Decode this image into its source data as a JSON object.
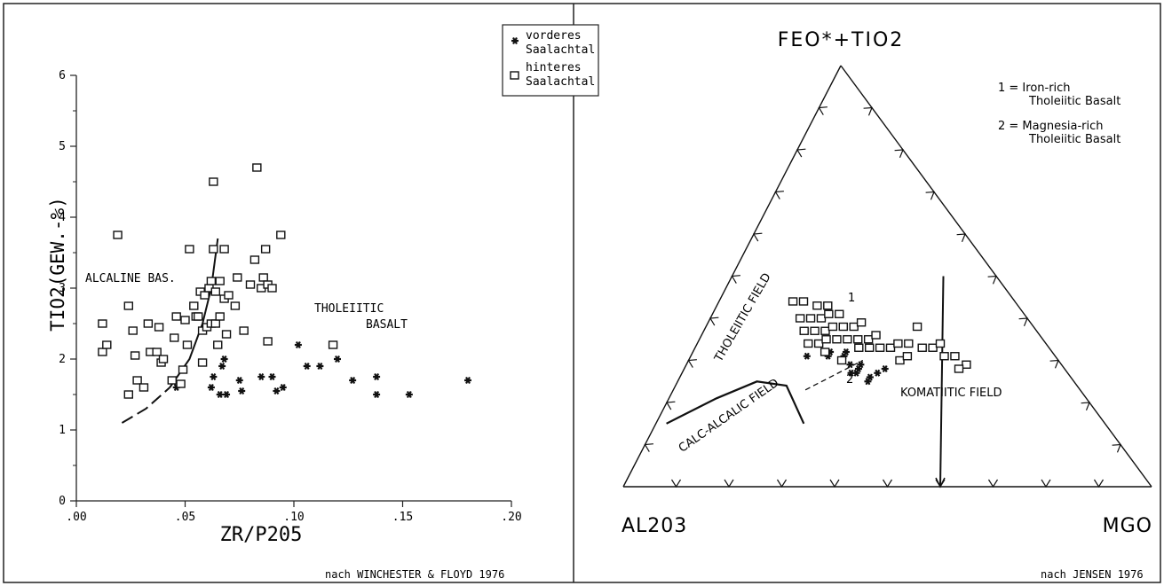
{
  "chart_data": [
    {
      "type": "scatter",
      "xlabel": "ZR/P205",
      "ylabel": "TIO2(GEW.-%)",
      "xlim": [
        0.0,
        0.2
      ],
      "ylim": [
        0,
        6
      ],
      "xticks": [
        ".00",
        ".05",
        ".10",
        ".15",
        ".20"
      ],
      "xtick_values": [
        0.0,
        0.05,
        0.1,
        0.15,
        0.2
      ],
      "yticks": [
        "0",
        "1",
        "2",
        "3",
        "4",
        "5",
        "6"
      ],
      "ytick_values": [
        0,
        1,
        2,
        3,
        4,
        5,
        6
      ],
      "grid": false,
      "legend_position": "top-right",
      "legend": [
        {
          "marker": "star",
          "label": "vorderes\nSaalachtal",
          "line1": "vorderes",
          "line2": "Saalachtal"
        },
        {
          "marker": "square",
          "label": "hinteres\nSaalachtal",
          "line1": "hinteres",
          "line2": "Saalachtal"
        }
      ],
      "field_labels": {
        "alkaline": "ALCALINE BAS.",
        "tholeiitic_line1": "THOLEIITIC",
        "tholeiitic_line2": "BASALT"
      },
      "boundary_curve": [
        [
          0.021,
          1.1
        ],
        [
          0.032,
          1.3
        ],
        [
          0.043,
          1.6
        ],
        [
          0.052,
          2.0
        ],
        [
          0.058,
          2.5
        ],
        [
          0.062,
          3.0
        ],
        [
          0.065,
          3.7
        ]
      ],
      "boundary_solid_from_index": 2,
      "source": "nach WINCHESTER & FLOYD 1976",
      "series": [
        {
          "name": "vorderes Saalachtal",
          "marker": "star",
          "points": [
            [
              0.046,
              1.6
            ],
            [
              0.048,
              1.65
            ],
            [
              0.062,
              1.6
            ],
            [
              0.063,
              1.75
            ],
            [
              0.066,
              1.5
            ],
            [
              0.067,
              1.9
            ],
            [
              0.068,
              2.0
            ],
            [
              0.069,
              1.5
            ],
            [
              0.075,
              1.7
            ],
            [
              0.076,
              1.55
            ],
            [
              0.085,
              1.75
            ],
            [
              0.09,
              1.75
            ],
            [
              0.092,
              1.55
            ],
            [
              0.095,
              1.6
            ],
            [
              0.102,
              2.2
            ],
            [
              0.106,
              1.9
            ],
            [
              0.112,
              1.9
            ],
            [
              0.12,
              2.0
            ],
            [
              0.127,
              1.7
            ],
            [
              0.138,
              1.75
            ],
            [
              0.138,
              1.5
            ],
            [
              0.153,
              1.5
            ],
            [
              0.18,
              1.7
            ]
          ]
        },
        {
          "name": "hinteres Saalachtal",
          "marker": "square",
          "points": [
            [
              0.012,
              2.1
            ],
            [
              0.012,
              2.5
            ],
            [
              0.014,
              2.2
            ],
            [
              0.019,
              3.75
            ],
            [
              0.024,
              1.5
            ],
            [
              0.024,
              2.75
            ],
            [
              0.026,
              2.4
            ],
            [
              0.027,
              2.05
            ],
            [
              0.028,
              1.7
            ],
            [
              0.031,
              1.6
            ],
            [
              0.033,
              2.5
            ],
            [
              0.034,
              2.1
            ],
            [
              0.037,
              2.1
            ],
            [
              0.038,
              2.45
            ],
            [
              0.039,
              1.95
            ],
            [
              0.04,
              2.0
            ],
            [
              0.044,
              1.7
            ],
            [
              0.045,
              2.3
            ],
            [
              0.046,
              2.6
            ],
            [
              0.048,
              1.65
            ],
            [
              0.049,
              1.85
            ],
            [
              0.05,
              2.55
            ],
            [
              0.051,
              2.2
            ],
            [
              0.052,
              3.55
            ],
            [
              0.054,
              2.75
            ],
            [
              0.055,
              2.6
            ],
            [
              0.056,
              2.6
            ],
            [
              0.057,
              2.95
            ],
            [
              0.058,
              1.95
            ],
            [
              0.058,
              2.4
            ],
            [
              0.059,
              2.9
            ],
            [
              0.06,
              2.45
            ],
            [
              0.061,
              3.0
            ],
            [
              0.062,
              3.1
            ],
            [
              0.062,
              2.5
            ],
            [
              0.063,
              3.55
            ],
            [
              0.063,
              4.5
            ],
            [
              0.064,
              2.95
            ],
            [
              0.064,
              2.5
            ],
            [
              0.065,
              2.2
            ],
            [
              0.066,
              2.6
            ],
            [
              0.066,
              3.1
            ],
            [
              0.068,
              2.85
            ],
            [
              0.068,
              3.55
            ],
            [
              0.069,
              2.35
            ],
            [
              0.07,
              2.9
            ],
            [
              0.073,
              2.75
            ],
            [
              0.074,
              3.15
            ],
            [
              0.077,
              2.4
            ],
            [
              0.08,
              3.05
            ],
            [
              0.082,
              3.4
            ],
            [
              0.083,
              4.7
            ],
            [
              0.085,
              3.0
            ],
            [
              0.086,
              3.15
            ],
            [
              0.087,
              3.55
            ],
            [
              0.088,
              3.05
            ],
            [
              0.088,
              2.25
            ],
            [
              0.09,
              3.0
            ],
            [
              0.094,
              3.75
            ],
            [
              0.118,
              2.2
            ]
          ]
        }
      ]
    },
    {
      "type": "ternary-scatter",
      "apex_top": "FEO*+TIO2",
      "apex_left": "AL203",
      "apex_right": "MGO",
      "legend_position": "top-right",
      "legend": [
        {
          "line1": "1 = Iron-rich",
          "line2": "Tholeiitic Basalt"
        },
        {
          "line1": "2 = Magnesia-rich",
          "line2": "Tholeiitic Basalt"
        }
      ],
      "field_labels": {
        "tholeiitic": "THOLEIITIC FIELD",
        "calc_alkalic": "CALC-ALCALIC FIELD",
        "komatiitic": "KOMATIITIC FIELD",
        "label_1": "1",
        "label_2": "2"
      },
      "boundary_komatiitic_top": {
        "Al": 0.1,
        "FeTi": 0.5,
        "Mg": 0.4
      },
      "boundary_komatiitic_bottom": {
        "Al": 0.4,
        "FeTi": 0.0,
        "Mg": 0.6
      },
      "boundary_ca_curve": [
        {
          "Al": 0.83,
          "FeTi": 0.15,
          "Mg": 0.02
        },
        {
          "Al": 0.7,
          "FeTi": 0.21,
          "Mg": 0.09
        },
        {
          "Al": 0.6,
          "FeTi": 0.25,
          "Mg": 0.15
        },
        {
          "Al": 0.55,
          "FeTi": 0.24,
          "Mg": 0.21
        },
        {
          "Al": 0.57,
          "FeTi": 0.15,
          "Mg": 0.28
        }
      ],
      "boundary_ca_dashed": [
        {
          "Al": 0.52,
          "FeTi": 0.23,
          "Mg": 0.25
        },
        {
          "Al": 0.37,
          "FeTi": 0.3,
          "Mg": 0.33
        }
      ],
      "source": "nach JENSEN 1976",
      "series": [
        {
          "name": "vorderes Saalachtal",
          "marker": "star",
          "points": [
            {
              "Al": 0.45,
              "FeTi": 0.34,
              "Mg": 0.21
            },
            {
              "Al": 0.47,
              "FeTi": 0.31,
              "Mg": 0.22
            },
            {
              "Al": 0.43,
              "FeTi": 0.31,
              "Mg": 0.26
            },
            {
              "Al": 0.42,
              "FeTi": 0.32,
              "Mg": 0.26
            },
            {
              "Al": 0.4,
              "FeTi": 0.31,
              "Mg": 0.29
            },
            {
              "Al": 0.39,
              "FeTi": 0.32,
              "Mg": 0.29
            },
            {
              "Al": 0.41,
              "FeTi": 0.3,
              "Mg": 0.29
            },
            {
              "Al": 0.4,
              "FeTi": 0.29,
              "Mg": 0.31
            },
            {
              "Al": 0.39,
              "FeTi": 0.28,
              "Mg": 0.33
            },
            {
              "Al": 0.38,
              "FeTi": 0.29,
              "Mg": 0.33
            },
            {
              "Al": 0.41,
              "FeTi": 0.27,
              "Mg": 0.32
            },
            {
              "Al": 0.4,
              "FeTi": 0.27,
              "Mg": 0.33
            },
            {
              "Al": 0.38,
              "FeTi": 0.26,
              "Mg": 0.36
            },
            {
              "Al": 0.36,
              "FeTi": 0.27,
              "Mg": 0.37
            },
            {
              "Al": 0.34,
              "FeTi": 0.28,
              "Mg": 0.38
            },
            {
              "Al": 0.39,
              "FeTi": 0.25,
              "Mg": 0.36
            }
          ]
        },
        {
          "name": "hinteres Saalachtal",
          "marker": "square",
          "points": [
            {
              "Al": 0.42,
              "FeTi": 0.44,
              "Mg": 0.14
            },
            {
              "Al": 0.4,
              "FeTi": 0.44,
              "Mg": 0.16
            },
            {
              "Al": 0.38,
              "FeTi": 0.43,
              "Mg": 0.19
            },
            {
              "Al": 0.36,
              "FeTi": 0.43,
              "Mg": 0.21
            },
            {
              "Al": 0.43,
              "FeTi": 0.4,
              "Mg": 0.17
            },
            {
              "Al": 0.41,
              "FeTi": 0.4,
              "Mg": 0.19
            },
            {
              "Al": 0.39,
              "FeTi": 0.4,
              "Mg": 0.21
            },
            {
              "Al": 0.37,
              "FeTi": 0.41,
              "Mg": 0.22
            },
            {
              "Al": 0.35,
              "FeTi": 0.41,
              "Mg": 0.24
            },
            {
              "Al": 0.44,
              "FeTi": 0.37,
              "Mg": 0.19
            },
            {
              "Al": 0.42,
              "FeTi": 0.37,
              "Mg": 0.21
            },
            {
              "Al": 0.4,
              "FeTi": 0.37,
              "Mg": 0.23
            },
            {
              "Al": 0.38,
              "FeTi": 0.38,
              "Mg": 0.24
            },
            {
              "Al": 0.36,
              "FeTi": 0.38,
              "Mg": 0.26
            },
            {
              "Al": 0.34,
              "FeTi": 0.38,
              "Mg": 0.28
            },
            {
              "Al": 0.32,
              "FeTi": 0.39,
              "Mg": 0.29
            },
            {
              "Al": 0.45,
              "FeTi": 0.34,
              "Mg": 0.21
            },
            {
              "Al": 0.43,
              "FeTi": 0.34,
              "Mg": 0.23
            },
            {
              "Al": 0.41,
              "FeTi": 0.35,
              "Mg": 0.24
            },
            {
              "Al": 0.39,
              "FeTi": 0.35,
              "Mg": 0.26
            },
            {
              "Al": 0.37,
              "FeTi": 0.35,
              "Mg": 0.28
            },
            {
              "Al": 0.35,
              "FeTi": 0.35,
              "Mg": 0.3
            },
            {
              "Al": 0.33,
              "FeTi": 0.35,
              "Mg": 0.32
            },
            {
              "Al": 0.31,
              "FeTi": 0.36,
              "Mg": 0.33
            },
            {
              "Al": 0.43,
              "FeTi": 0.32,
              "Mg": 0.25
            },
            {
              "Al": 0.36,
              "FeTi": 0.33,
              "Mg": 0.31
            },
            {
              "Al": 0.34,
              "FeTi": 0.33,
              "Mg": 0.33
            },
            {
              "Al": 0.32,
              "FeTi": 0.33,
              "Mg": 0.35
            },
            {
              "Al": 0.3,
              "FeTi": 0.33,
              "Mg": 0.37
            },
            {
              "Al": 0.28,
              "FeTi": 0.34,
              "Mg": 0.38
            },
            {
              "Al": 0.26,
              "FeTi": 0.34,
              "Mg": 0.4
            },
            {
              "Al": 0.41,
              "FeTi": 0.3,
              "Mg": 0.29
            },
            {
              "Al": 0.24,
              "FeTi": 0.33,
              "Mg": 0.43
            },
            {
              "Al": 0.22,
              "FeTi": 0.33,
              "Mg": 0.45
            },
            {
              "Al": 0.2,
              "FeTi": 0.34,
              "Mg": 0.46
            },
            {
              "Al": 0.21,
              "FeTi": 0.31,
              "Mg": 0.48
            },
            {
              "Al": 0.19,
              "FeTi": 0.31,
              "Mg": 0.5
            },
            {
              "Al": 0.18,
              "FeTi": 0.29,
              "Mg": 0.53
            },
            {
              "Al": 0.2,
              "FeTi": 0.28,
              "Mg": 0.52
            },
            {
              "Al": 0.22,
              "FeTi": 0.38,
              "Mg": 0.4
            },
            {
              "Al": 0.3,
              "FeTi": 0.3,
              "Mg": 0.4
            },
            {
              "Al": 0.28,
              "FeTi": 0.31,
              "Mg": 0.41
            }
          ]
        }
      ]
    }
  ]
}
